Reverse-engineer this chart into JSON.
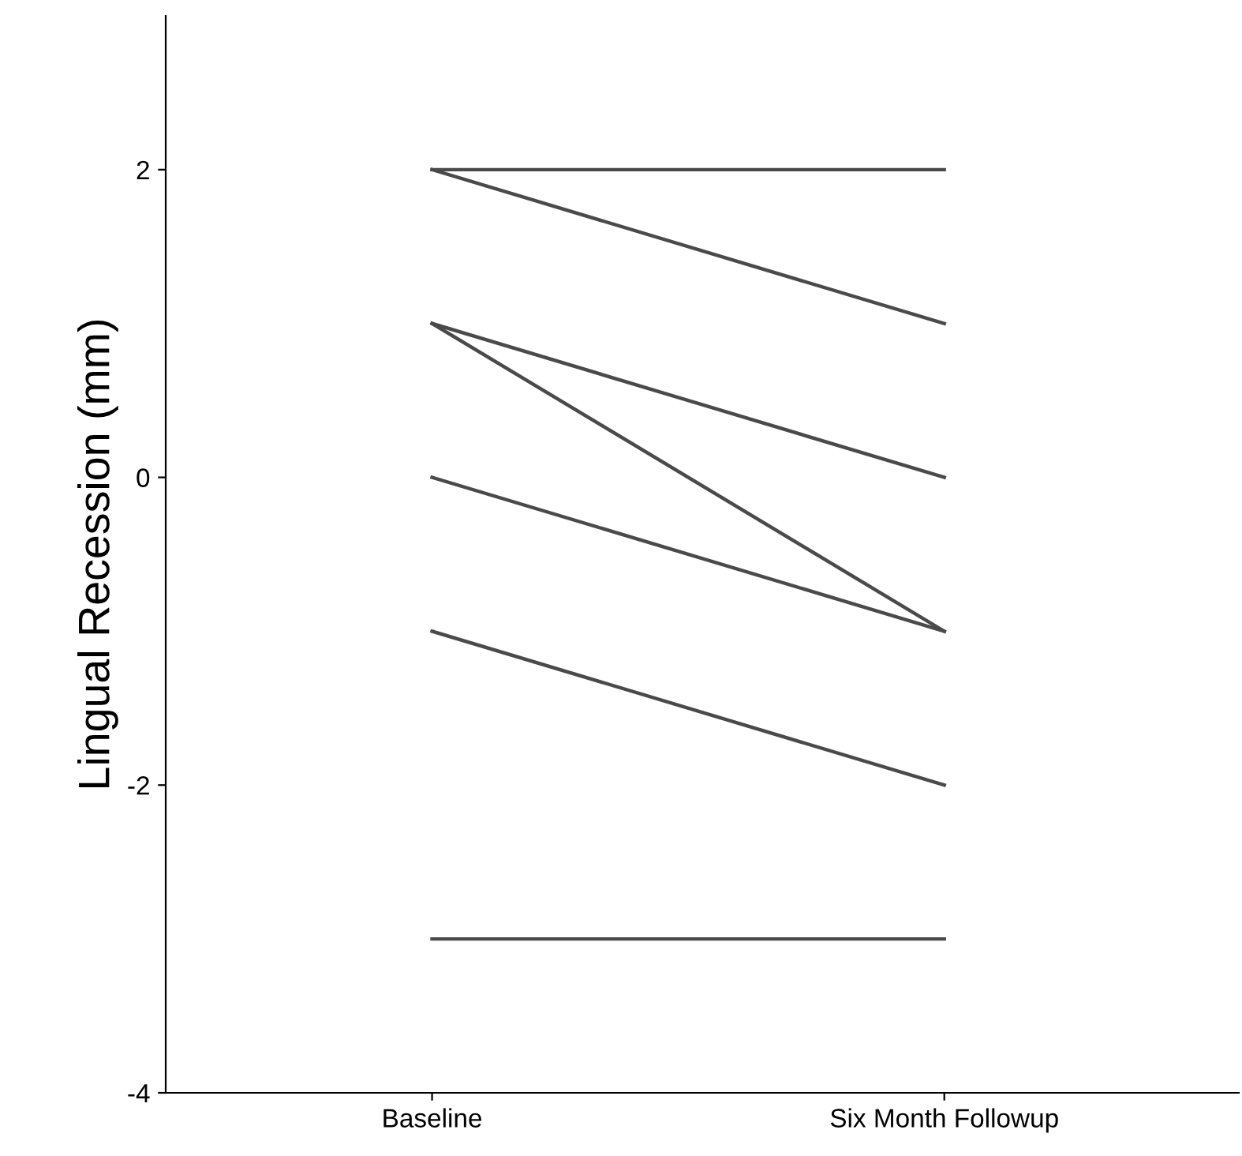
{
  "chart_data": {
    "type": "line",
    "ylabel": "Lingual Recession (mm)",
    "categories": [
      "Baseline",
      "Six Month Followup"
    ],
    "series": [
      {
        "color": "#4a4a4a",
        "values": [
          2,
          2
        ]
      },
      {
        "color": "#4a4a4a",
        "values": [
          2,
          1
        ]
      },
      {
        "color": "#4a4a4a",
        "values": [
          1,
          0
        ]
      },
      {
        "color": "#4a4a4a",
        "values": [
          1,
          -1
        ]
      },
      {
        "color": "#4a4a4a",
        "values": [
          0,
          -1
        ]
      },
      {
        "color": "#4a4a4a",
        "values": [
          -1,
          -2
        ]
      },
      {
        "color": "#4a4a4a",
        "values": [
          -3,
          -3
        ]
      }
    ],
    "ylim": [
      -4,
      3
    ],
    "yticks": [
      -4,
      -2,
      0,
      2
    ],
    "grid": false,
    "legend": false,
    "marker": "none",
    "line_style": "solid"
  }
}
